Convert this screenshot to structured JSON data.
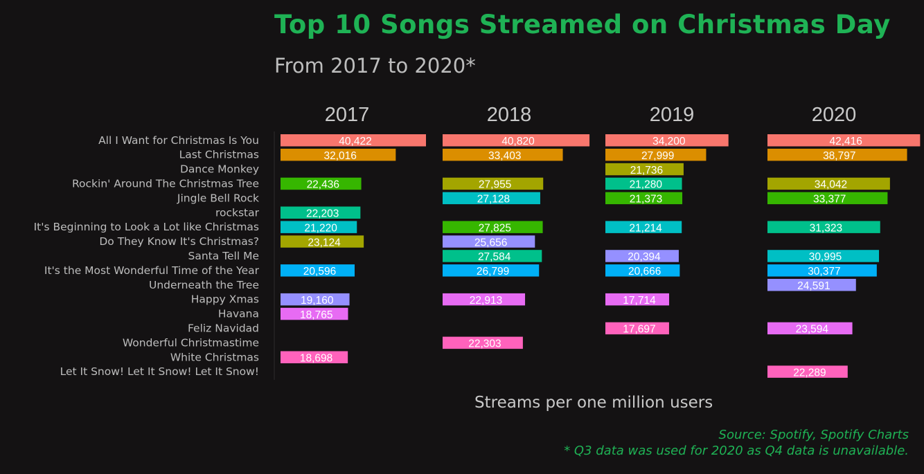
{
  "chart_data": {
    "type": "bar",
    "orientation": "horizontal",
    "faceted_by": "year",
    "title": "Top 10 Songs Streamed on Christmas Day",
    "subtitle": "From 2017 to 2020*",
    "xlabel": "Streams per one million users",
    "ylabel": "",
    "xlim": [
      0,
      43500
    ],
    "grid": false,
    "legend": "none",
    "facets": [
      "2017",
      "2018",
      "2019",
      "2020"
    ],
    "categories": [
      "All I Want for Christmas Is You",
      "Last Christmas",
      "Dance Monkey",
      "Rockin' Around The Christmas Tree",
      "Jingle Bell Rock",
      "rockstar",
      "It's Beginning to Look a Lot like Christmas",
      "Do They Know It's Christmas?",
      "Santa Tell Me",
      "It's the Most Wonderful Time of the Year",
      "Underneath the Tree",
      "Happy Xmas",
      "Havana",
      "Feliz Navidad",
      "Wonderful Christmastime",
      "White Christmas",
      "Let It Snow! Let It Snow! Let It Snow!"
    ],
    "series": [
      {
        "name": "2017",
        "values": [
          40422,
          32016,
          null,
          22436,
          null,
          22203,
          21220,
          23124,
          null,
          20596,
          null,
          19160,
          18765,
          null,
          null,
          18698,
          null
        ],
        "labels": [
          "40,422",
          "32,016",
          null,
          "22,436",
          null,
          "22,203",
          "21,220",
          "23,124",
          null,
          "20,596",
          null,
          "19,160",
          "18,765",
          null,
          null,
          "18,698",
          null
        ]
      },
      {
        "name": "2018",
        "values": [
          40820,
          33403,
          null,
          27955,
          27128,
          null,
          27825,
          25656,
          27584,
          26799,
          null,
          22913,
          null,
          null,
          22303,
          null,
          null
        ],
        "labels": [
          "40,820",
          "33,403",
          null,
          "27,955",
          "27,128",
          null,
          "27,825",
          "25,656",
          "27,584",
          "26,799",
          null,
          "22,913",
          null,
          null,
          "22,303",
          null,
          null
        ]
      },
      {
        "name": "2019",
        "values": [
          34200,
          27999,
          21736,
          21280,
          21373,
          null,
          21214,
          null,
          20394,
          20666,
          null,
          17714,
          null,
          17697,
          null,
          null,
          null
        ],
        "labels": [
          "34,200",
          "27,999",
          "21,736",
          "21,280",
          "21,373",
          null,
          "21,214",
          null,
          "20,394",
          "20,666",
          null,
          "17,714",
          null,
          "17,697",
          null,
          null,
          null
        ]
      },
      {
        "name": "2020",
        "values": [
          42416,
          38797,
          null,
          34042,
          33377,
          null,
          31323,
          null,
          30995,
          30377,
          24591,
          null,
          null,
          23594,
          null,
          null,
          22289
        ],
        "labels": [
          "42,416",
          "38,797",
          null,
          "34,042",
          "33,377",
          null,
          "31,323",
          null,
          "30,995",
          "30,377",
          "24,591",
          null,
          null,
          "23,594",
          null,
          null,
          "22,289"
        ]
      }
    ],
    "colors": [
      "#f8766d",
      "#db8e00",
      "#aea200",
      "#aea200",
      "#00bd5c",
      "#00c1a7",
      "#00bade",
      "#00a6ff",
      "#b385ff",
      "#00a6ff",
      "#b385ff",
      "#b385ff",
      "#ef67eb",
      "#ef67eb",
      "#ff63b6",
      "#ff63b6",
      "#ff63b6"
    ],
    "bar_colors": {
      "2017": [
        "#f8766d",
        "#db8e00",
        null,
        "#36b600",
        null,
        "#00c08b",
        "#00bfc4",
        "#a3a500",
        null,
        "#00b0f6",
        null,
        "#9590ff",
        "#e76bf3",
        null,
        null,
        "#ff62bc",
        null
      ],
      "2018": [
        "#f8766d",
        "#db8e00",
        null,
        "#a3a500",
        "#00bfc4",
        null,
        "#36b600",
        "#9590ff",
        "#00c08b",
        "#00b0f6",
        null,
        "#e76bf3",
        null,
        null,
        "#ff62bc",
        null,
        null
      ],
      "2019": [
        "#f8766d",
        "#db8e00",
        "#a3a500",
        "#00c08b",
        "#36b600",
        null,
        "#00bfc4",
        null,
        "#9590ff",
        "#00b0f6",
        null,
        "#e76bf3",
        null,
        "#ff62bc",
        null,
        null,
        null
      ],
      "2020": [
        "#f8766d",
        "#db8e00",
        null,
        "#a3a500",
        "#36b600",
        null,
        "#00c08b",
        null,
        "#00bfc4",
        "#00b0f6",
        "#9590ff",
        null,
        null,
        "#e76bf3",
        null,
        null,
        "#ff62bc"
      ]
    },
    "caption": [
      "Source: Spotify, Spotify Charts",
      "* Q3 data was used for 2020 as Q4 data is unavailable."
    ]
  }
}
